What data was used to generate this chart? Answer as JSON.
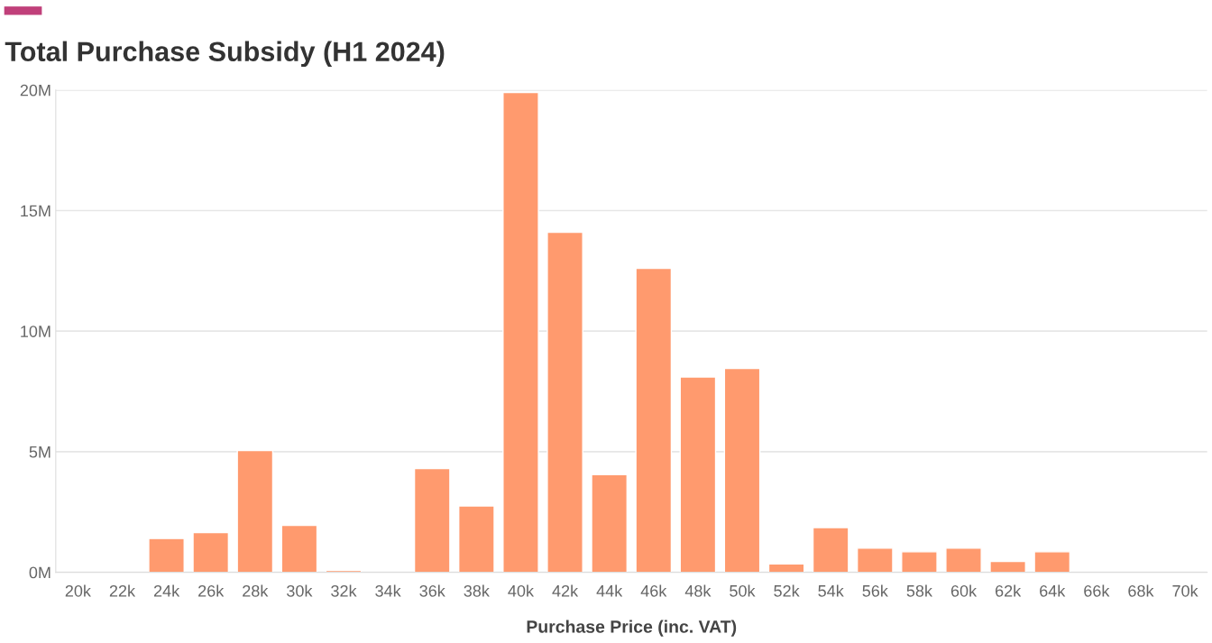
{
  "chart_data": {
    "type": "bar",
    "title": "Total Purchase Subsidy (H1 2024)",
    "xlabel": "Purchase Price (inc. VAT)",
    "categories": [
      "20k",
      "22k",
      "24k",
      "26k",
      "28k",
      "30k",
      "32k",
      "34k",
      "36k",
      "38k",
      "40k",
      "42k",
      "44k",
      "46k",
      "48k",
      "50k",
      "52k",
      "54k",
      "56k",
      "58k",
      "60k",
      "62k",
      "64k",
      "66k",
      "68k",
      "70k"
    ],
    "values": [
      null,
      null,
      1.4,
      1.65,
      5.05,
      1.95,
      0.08,
      null,
      4.3,
      2.75,
      19.9,
      14.1,
      4.05,
      12.6,
      8.1,
      8.45,
      0.35,
      1.85,
      1.0,
      0.85,
      1.0,
      0.45,
      0.85,
      null,
      null,
      null
    ],
    "color": "#ff9a6e",
    "ylim": [
      0,
      20
    ],
    "yticks": [
      {
        "value": 0,
        "label": "0M"
      },
      {
        "value": 5,
        "label": "5M"
      },
      {
        "value": 10,
        "label": "10M"
      },
      {
        "value": 15,
        "label": "15M"
      },
      {
        "value": 20,
        "label": "20M"
      }
    ],
    "grid": "y"
  }
}
